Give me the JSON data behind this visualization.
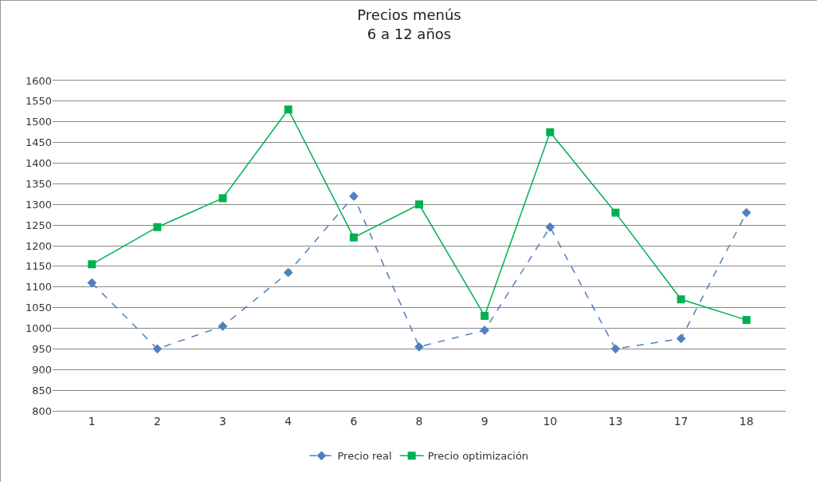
{
  "chart_data": {
    "type": "line",
    "title": "Precios menús\n6 a 12 años",
    "categories": [
      "1",
      "2",
      "3",
      "4",
      "6",
      "8",
      "9",
      "10",
      "13",
      "17",
      "18"
    ],
    "series": [
      {
        "name": "Precio real",
        "color": "#4f81bd",
        "marker": "diamond",
        "line_style": "dashed",
        "values": [
          1110,
          950,
          1005,
          1135,
          1320,
          955,
          995,
          1245,
          950,
          975,
          1280
        ]
      },
      {
        "name": "Precio optimización",
        "color": "#00b050",
        "marker": "square",
        "line_style": "solid",
        "values": [
          1155,
          1245,
          1315,
          1530,
          1220,
          1300,
          1030,
          1475,
          1280,
          1070,
          1020
        ]
      }
    ],
    "ylim": [
      800,
      1600
    ],
    "yticks": [
      800,
      850,
      900,
      950,
      1000,
      1050,
      1100,
      1150,
      1200,
      1250,
      1300,
      1350,
      1400,
      1450,
      1500,
      1550,
      1600
    ],
    "grid": "y",
    "legend": "bottom"
  }
}
